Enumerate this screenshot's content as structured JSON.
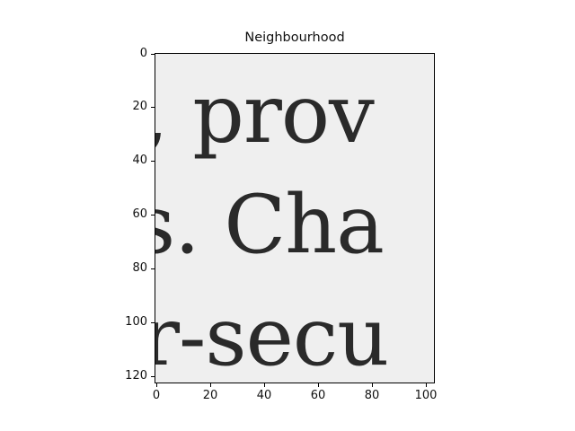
{
  "figure": {
    "title": "Neighbourhood",
    "text_lines": [
      ", prov",
      "s. Cha",
      "r-secu"
    ],
    "y_ticks": [
      "0",
      "20",
      "40",
      "60",
      "80",
      "100",
      "120"
    ],
    "x_ticks": [
      "0",
      "20",
      "40",
      "60",
      "80",
      "100"
    ],
    "colors": {
      "paper": "#efefef",
      "ink": "#2a2a2a"
    }
  }
}
